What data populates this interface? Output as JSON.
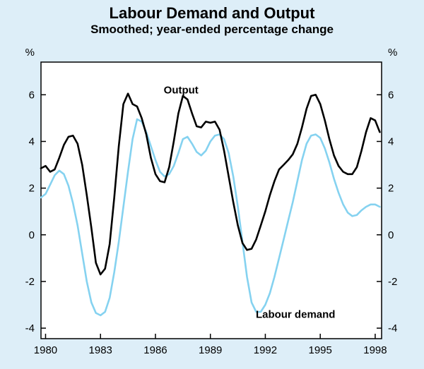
{
  "page": {
    "background_color": "#ddeef8"
  },
  "chart_data": {
    "type": "line",
    "title": "Labour Demand and Output",
    "subtitle": "Smoothed; year-ended percentage change",
    "unit_left": "%",
    "unit_right": "%",
    "x_domain": [
      1979.75,
      1998.35
    ],
    "y_domain": [
      -4.45,
      7.4
    ],
    "y_ticks": [
      -4,
      -2,
      0,
      2,
      4,
      6
    ],
    "x_ticks": [
      1980,
      1983,
      1986,
      1989,
      1992,
      1995,
      1998
    ],
    "plot_background": "#ffffff",
    "axis_color": "#000000",
    "grid": false,
    "legend": "inline-annotations",
    "x_start": 1979.75,
    "x_step": 0.25,
    "series": [
      {
        "name": "Output",
        "color": "#000000",
        "values": [
          2.85,
          2.95,
          2.7,
          2.8,
          3.3,
          3.85,
          4.2,
          4.25,
          3.9,
          3.0,
          1.7,
          0.3,
          -1.2,
          -1.7,
          -1.45,
          -0.4,
          1.6,
          3.8,
          5.6,
          6.05,
          5.6,
          5.5,
          5.0,
          4.3,
          3.3,
          2.6,
          2.3,
          2.25,
          2.9,
          4.0,
          5.2,
          5.95,
          5.8,
          5.2,
          4.65,
          4.6,
          4.85,
          4.8,
          4.85,
          4.5,
          3.6,
          2.5,
          1.4,
          0.4,
          -0.35,
          -0.65,
          -0.6,
          -0.2,
          0.4,
          1.0,
          1.7,
          2.3,
          2.8,
          3.0,
          3.2,
          3.45,
          3.9,
          4.6,
          5.4,
          5.95,
          6.0,
          5.6,
          4.9,
          4.1,
          3.4,
          2.95,
          2.7,
          2.6,
          2.6,
          2.9,
          3.6,
          4.4,
          5.0,
          4.9,
          4.4
        ]
      },
      {
        "name": "Labour demand",
        "color": "#85d2f0",
        "values": [
          1.6,
          1.75,
          2.15,
          2.55,
          2.75,
          2.6,
          2.1,
          1.35,
          0.4,
          -0.8,
          -2.0,
          -2.9,
          -3.35,
          -3.45,
          -3.3,
          -2.7,
          -1.6,
          -0.3,
          1.2,
          2.7,
          4.1,
          4.95,
          4.85,
          4.4,
          3.8,
          3.2,
          2.7,
          2.5,
          2.6,
          2.95,
          3.5,
          4.1,
          4.2,
          3.9,
          3.55,
          3.4,
          3.6,
          4.0,
          4.25,
          4.3,
          4.1,
          3.5,
          2.5,
          1.2,
          -0.3,
          -1.8,
          -2.9,
          -3.3,
          -3.3,
          -3.0,
          -2.5,
          -1.8,
          -1.0,
          -0.2,
          0.6,
          1.4,
          2.3,
          3.2,
          3.9,
          4.25,
          4.3,
          4.15,
          3.7,
          3.1,
          2.4,
          1.8,
          1.3,
          0.95,
          0.8,
          0.85,
          1.05,
          1.2,
          1.3,
          1.3,
          1.2
        ]
      }
    ],
    "annotations": [
      {
        "text": "Output",
        "x": 1987.4,
        "y": 6.2
      },
      {
        "text": "Labour demand",
        "x": 1993.65,
        "y": -3.4
      }
    ]
  }
}
